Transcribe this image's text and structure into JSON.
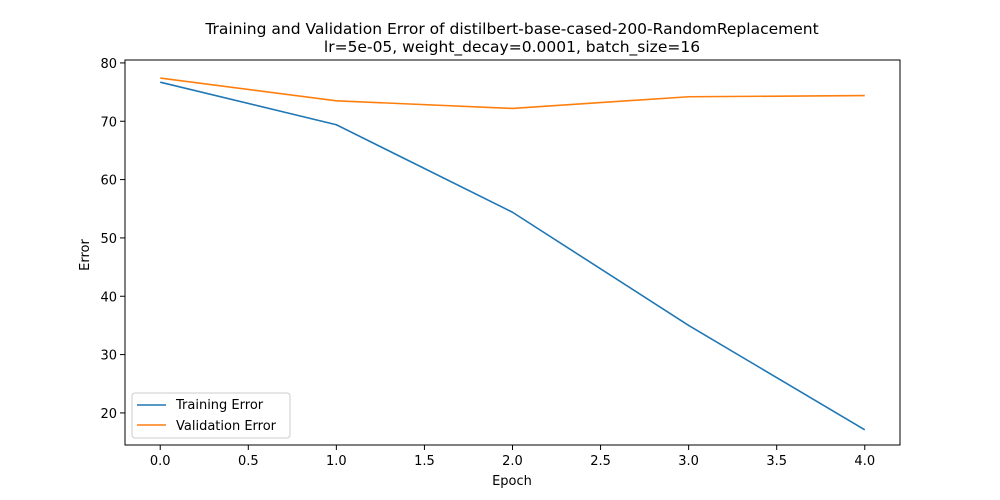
{
  "chart_data": {
    "type": "line",
    "title": "Training and Validation Error of distilbert-base-cased-200-RandomReplacement",
    "subtitle": "lr=5e-05, weight_decay=0.0001, batch_size=16",
    "xlabel": "Epoch",
    "ylabel": "Error",
    "xlim": [
      -0.2,
      4.2
    ],
    "ylim": [
      14.5,
      80.5
    ],
    "xticks": [
      0.0,
      0.5,
      1.0,
      1.5,
      2.0,
      2.5,
      3.0,
      3.5,
      4.0
    ],
    "xtick_labels": [
      "0.0",
      "0.5",
      "1.0",
      "1.5",
      "2.0",
      "2.5",
      "3.0",
      "3.5",
      "4.0"
    ],
    "yticks": [
      20,
      30,
      40,
      50,
      60,
      70,
      80
    ],
    "ytick_labels": [
      "20",
      "30",
      "40",
      "50",
      "60",
      "70",
      "80"
    ],
    "grid": false,
    "legend_position": "lower-left",
    "x": [
      0,
      1,
      2,
      3,
      4
    ],
    "series": [
      {
        "name": "Training Error",
        "color": "#1f77b4",
        "values": [
          76.7,
          69.4,
          54.4,
          35.0,
          17.1
        ]
      },
      {
        "name": "Validation Error",
        "color": "#ff7f0e",
        "values": [
          77.4,
          73.5,
          72.2,
          74.2,
          74.4
        ]
      }
    ]
  }
}
